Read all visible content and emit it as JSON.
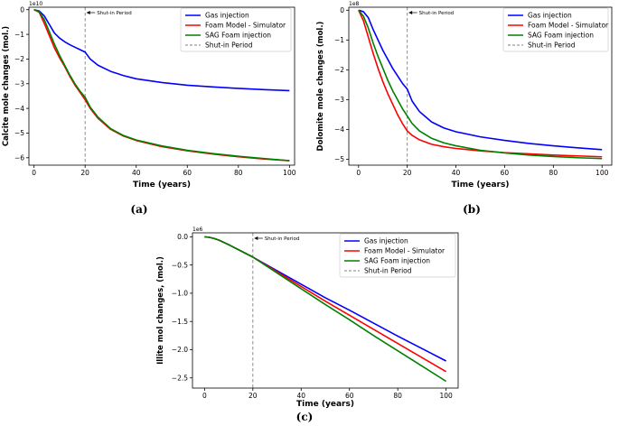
{
  "colors": {
    "gas": "#0000ff",
    "foam_model": "#ff0000",
    "sag": "#008000",
    "shut_in": "#808080",
    "axis": "#000000"
  },
  "chart_data": [
    {
      "type": "line",
      "panel_label": "(a)",
      "xlabel": "Time (years)",
      "ylabel": "Calcite mole changes (mol.)",
      "offset_text": "1e10",
      "xlim": [
        -2,
        102
      ],
      "ylim": [
        -6.3,
        0.1
      ],
      "xticks": [
        0,
        20,
        40,
        60,
        80,
        100
      ],
      "yticks": [
        0,
        -1,
        -2,
        -3,
        -4,
        -5,
        -6
      ],
      "shut_in": {
        "x": 20,
        "annotation": "Shut-in Period"
      },
      "legend_location": "top-right",
      "series": [
        {
          "name": "Gas injection",
          "color_key": "gas",
          "x": [
            0,
            2,
            4,
            6,
            8,
            10,
            12,
            14,
            16,
            18,
            20,
            22,
            25,
            30,
            35,
            40,
            50,
            60,
            70,
            80,
            90,
            100
          ],
          "y": [
            0,
            -0.05,
            -0.25,
            -0.6,
            -0.95,
            -1.15,
            -1.3,
            -1.42,
            -1.52,
            -1.62,
            -1.72,
            -2.0,
            -2.25,
            -2.5,
            -2.67,
            -2.8,
            -2.95,
            -3.06,
            -3.13,
            -3.19,
            -3.24,
            -3.28
          ]
        },
        {
          "name": "Foam Model - Simulator",
          "color_key": "foam_model",
          "x": [
            0,
            2,
            4,
            6,
            8,
            10,
            12,
            14,
            16,
            18,
            20,
            22,
            25,
            30,
            35,
            40,
            50,
            60,
            70,
            80,
            90,
            100
          ],
          "y": [
            0,
            -0.1,
            -0.55,
            -1.05,
            -1.55,
            -1.95,
            -2.3,
            -2.7,
            -3.05,
            -3.35,
            -3.65,
            -4.0,
            -4.4,
            -4.85,
            -5.12,
            -5.3,
            -5.55,
            -5.72,
            -5.85,
            -5.96,
            -6.05,
            -6.12
          ]
        },
        {
          "name": "SAG Foam injection",
          "color_key": "sag",
          "x": [
            0,
            2,
            4,
            6,
            8,
            10,
            12,
            14,
            16,
            18,
            20,
            22,
            25,
            30,
            35,
            40,
            50,
            60,
            70,
            80,
            90,
            100
          ],
          "y": [
            0,
            -0.08,
            -0.4,
            -0.9,
            -1.4,
            -1.85,
            -2.25,
            -2.65,
            -3.0,
            -3.3,
            -3.55,
            -3.95,
            -4.35,
            -4.82,
            -5.1,
            -5.28,
            -5.52,
            -5.7,
            -5.83,
            -5.94,
            -6.03,
            -6.12
          ]
        }
      ]
    },
    {
      "type": "line",
      "panel_label": "(b)",
      "xlabel": "Time (years)",
      "ylabel": "Dolomite mole changes (mol.)",
      "offset_text": "1e8",
      "xlim": [
        -4,
        104
      ],
      "ylim": [
        -5.2,
        0.1
      ],
      "xticks": [
        0,
        20,
        40,
        60,
        80,
        100
      ],
      "yticks": [
        0,
        -1,
        -2,
        -3,
        -4,
        -5
      ],
      "shut_in": {
        "x": 20,
        "annotation": "Shut-in Period"
      },
      "legend_location": "top-right",
      "series": [
        {
          "name": "Gas injection",
          "color_key": "gas",
          "x": [
            0,
            2,
            4,
            6,
            8,
            10,
            12,
            14,
            16,
            18,
            20,
            22,
            25,
            30,
            35,
            40,
            50,
            60,
            70,
            80,
            90,
            100
          ],
          "y": [
            0,
            -0.05,
            -0.25,
            -0.65,
            -1.0,
            -1.35,
            -1.65,
            -1.95,
            -2.2,
            -2.45,
            -2.65,
            -3.05,
            -3.4,
            -3.75,
            -3.95,
            -4.08,
            -4.25,
            -4.37,
            -4.47,
            -4.55,
            -4.62,
            -4.68
          ]
        },
        {
          "name": "Foam Model - Simulator",
          "color_key": "foam_model",
          "x": [
            0,
            2,
            4,
            6,
            8,
            10,
            12,
            14,
            16,
            18,
            20,
            22,
            25,
            30,
            35,
            40,
            50,
            60,
            70,
            80,
            90,
            100
          ],
          "y": [
            0,
            -0.35,
            -0.9,
            -1.45,
            -1.95,
            -2.4,
            -2.8,
            -3.15,
            -3.5,
            -3.8,
            -4.05,
            -4.2,
            -4.35,
            -4.5,
            -4.58,
            -4.64,
            -4.72,
            -4.78,
            -4.82,
            -4.86,
            -4.89,
            -4.92
          ]
        },
        {
          "name": "SAG Foam injection",
          "color_key": "sag",
          "x": [
            0,
            2,
            4,
            6,
            8,
            10,
            12,
            14,
            16,
            18,
            20,
            22,
            25,
            30,
            35,
            40,
            50,
            60,
            70,
            80,
            90,
            100
          ],
          "y": [
            0,
            -0.2,
            -0.6,
            -1.1,
            -1.55,
            -1.95,
            -2.35,
            -2.7,
            -3.0,
            -3.3,
            -3.55,
            -3.8,
            -4.05,
            -4.3,
            -4.45,
            -4.55,
            -4.7,
            -4.79,
            -4.86,
            -4.91,
            -4.95,
            -4.98
          ]
        }
      ]
    },
    {
      "type": "line",
      "panel_label": "(c)",
      "xlabel": "Time (years)",
      "ylabel": "Illite mol changes, (mol.)",
      "offset_text": "1e6",
      "xlim": [
        -5,
        105
      ],
      "ylim": [
        -2.68,
        0.07
      ],
      "xticks": [
        0,
        20,
        40,
        60,
        80,
        100
      ],
      "yticks": [
        0.0,
        -0.5,
        -1.0,
        -1.5,
        -2.0,
        -2.5
      ],
      "ytick_labels": [
        "0.0",
        "−0.5",
        "−1.0",
        "−1.5",
        "−2.0",
        "−2.5"
      ],
      "shut_in": {
        "x": 20,
        "annotation": "Shut-in Period"
      },
      "legend_location": "top-right",
      "series": [
        {
          "name": "Gas injection",
          "color_key": "gas",
          "x": [
            0,
            2,
            4,
            6,
            8,
            10,
            15,
            20,
            30,
            40,
            50,
            60,
            70,
            80,
            90,
            100
          ],
          "y": [
            0,
            -0.01,
            -0.03,
            -0.06,
            -0.1,
            -0.14,
            -0.25,
            -0.36,
            -0.6,
            -0.84,
            -1.08,
            -1.3,
            -1.53,
            -1.76,
            -1.98,
            -2.2
          ]
        },
        {
          "name": "Foam Model - Simulator",
          "color_key": "foam_model",
          "x": [
            0,
            2,
            4,
            6,
            8,
            10,
            15,
            20,
            30,
            40,
            50,
            60,
            70,
            80,
            90,
            100
          ],
          "y": [
            0,
            -0.01,
            -0.03,
            -0.06,
            -0.1,
            -0.14,
            -0.25,
            -0.36,
            -0.62,
            -0.88,
            -1.14,
            -1.39,
            -1.64,
            -1.89,
            -2.14,
            -2.39
          ]
        },
        {
          "name": "SAG Foam injection",
          "color_key": "sag",
          "x": [
            0,
            2,
            4,
            6,
            8,
            10,
            15,
            20,
            30,
            40,
            50,
            60,
            70,
            80,
            90,
            100
          ],
          "y": [
            0,
            -0.01,
            -0.03,
            -0.06,
            -0.1,
            -0.14,
            -0.25,
            -0.36,
            -0.64,
            -0.92,
            -1.2,
            -1.47,
            -1.75,
            -2.02,
            -2.29,
            -2.56
          ]
        },
        {
          "name": "Shut-in Period",
          "color_key": "shut_in",
          "style": "dashed",
          "x": [],
          "y": []
        }
      ]
    }
  ]
}
